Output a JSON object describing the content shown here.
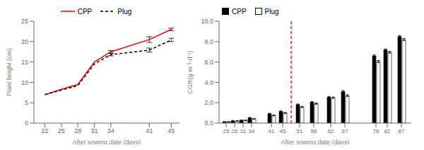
{
  "chart_data": [
    {
      "type": "line",
      "x": [
        22,
        25,
        28,
        31,
        34,
        41,
        45
      ],
      "xlabel": "After sowing date (days)",
      "ylabel": "Plant height (cm)",
      "xlim": [
        20,
        46.5
      ],
      "xticks": [
        22,
        25,
        28,
        31,
        34,
        41,
        45
      ],
      "ylim": [
        0,
        25
      ],
      "yticks": [
        0,
        5,
        10,
        15,
        20,
        25
      ],
      "legend": "top",
      "series": [
        {
          "name": "CPP",
          "color": "red",
          "line_style": "solid",
          "values": [
            7.0,
            8.3,
            9.5,
            15.0,
            17.5,
            20.5,
            23.0
          ],
          "errors": [
            0.0,
            0.0,
            0.0,
            0.0,
            0.3,
            0.7,
            0.3
          ]
        },
        {
          "name": "Plug",
          "color": "black",
          "line_style": "dashed",
          "values": [
            7.0,
            8.1,
            9.2,
            14.5,
            16.8,
            17.9,
            20.4
          ],
          "errors": [
            0.0,
            0.0,
            0.0,
            0.0,
            0.3,
            0.5,
            0.4
          ]
        }
      ]
    },
    {
      "type": "bar",
      "x": [
        25,
        28,
        31,
        34,
        41,
        45,
        51,
        56,
        62,
        67,
        78,
        82,
        87
      ],
      "xlabel": "After sowing date (days)",
      "ylabel": "CGR(g·m⁻²·d⁻¹)",
      "xlim": [
        22.5,
        90.5
      ],
      "xticks": [
        25,
        28,
        31,
        34,
        41,
        45,
        51,
        56,
        62,
        67,
        78,
        82,
        87
      ],
      "ylim": [
        0,
        10.0
      ],
      "yticks": [
        {
          "value": 0,
          "label": "0.0"
        },
        {
          "value": 2,
          "label": "2.0"
        },
        {
          "value": 4,
          "label": "4.0"
        },
        {
          "value": 6,
          "label": "6.0"
        },
        {
          "value": 8,
          "label": "8.0"
        },
        {
          "value": 10,
          "label": "10.0"
        }
      ],
      "legend": "top left",
      "series": [
        {
          "name": "CPP",
          "color": "black",
          "values": [
            0.12,
            0.22,
            0.28,
            0.52,
            0.92,
            1.15,
            1.82,
            2.05,
            2.55,
            3.1,
            6.6,
            7.2,
            8.5
          ],
          "errors": [
            0.03,
            0.04,
            0.04,
            0.04,
            0.05,
            0.05,
            0.06,
            0.07,
            0.07,
            0.09,
            0.1,
            0.09,
            0.1
          ]
        },
        {
          "name": "Plug",
          "color": "white",
          "values": [
            0.12,
            0.2,
            0.27,
            0.42,
            0.75,
            1.0,
            1.58,
            1.92,
            2.5,
            2.7,
            6.05,
            6.95,
            8.2
          ],
          "errors": [
            0.03,
            0.04,
            0.04,
            0.04,
            0.05,
            0.05,
            0.06,
            0.07,
            0.07,
            0.09,
            0.1,
            0.09,
            0.1
          ]
        }
      ],
      "vlines": [
        {
          "x": 48,
          "color": "red",
          "line_style": "dashed"
        }
      ]
    }
  ]
}
